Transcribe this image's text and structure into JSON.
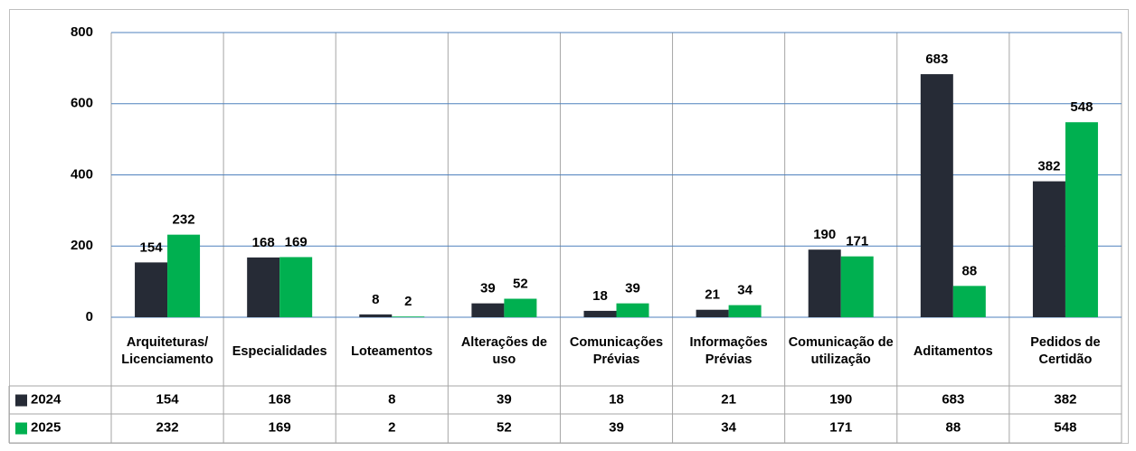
{
  "chart_data": {
    "type": "bar",
    "categories": [
      "Arquiteturas/ Licenciamento",
      "Especialidades",
      "Loteamentos",
      "Alterações de uso",
      "Comunicações Prévias",
      "Informações Prévias",
      "Comunicação de utilização",
      "Aditamentos",
      "Pedidos de Certidão"
    ],
    "series": [
      {
        "name": "2024",
        "color": "#262b36",
        "values": [
          154,
          168,
          8,
          39,
          18,
          21,
          190,
          683,
          382
        ]
      },
      {
        "name": "2025",
        "color": "#00b050",
        "values": [
          232,
          169,
          2,
          52,
          39,
          34,
          171,
          88,
          548
        ]
      }
    ],
    "ylim": [
      0,
      800
    ],
    "yticks": [
      0,
      200,
      400,
      600,
      800
    ],
    "grid": true,
    "data_table": true
  }
}
